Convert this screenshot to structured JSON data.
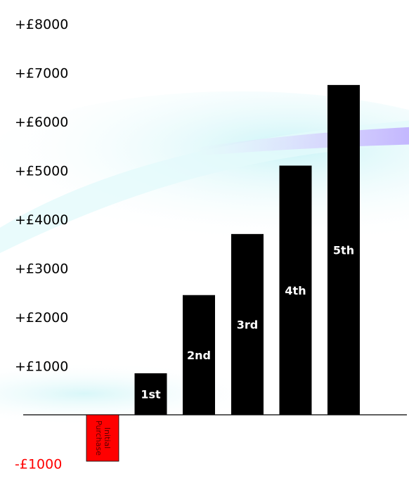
{
  "chart_data": {
    "type": "bar",
    "categories": [
      "Initial Purchase",
      "1st",
      "2nd",
      "3rd",
      "4th",
      "5th"
    ],
    "values": [
      -950,
      850,
      2450,
      3700,
      5100,
      6750
    ],
    "yticks": [
      "+£8000",
      "+£7000",
      "+£6000",
      "+£5000",
      "+£4000",
      "+£3000",
      "+£2000",
      "+£1000",
      "-£1000"
    ],
    "ytick_values": [
      8000,
      7000,
      6000,
      5000,
      4000,
      3000,
      2000,
      1000,
      -1000
    ],
    "ylim": [
      -1000,
      8000
    ],
    "grid": false,
    "title": "",
    "xlabel": "",
    "ylabel": ""
  },
  "colors": {
    "positive_bar": "#000000",
    "negative_bar": "#ff0000",
    "positive_label": "#ffffff",
    "negative_label": "#5a0000",
    "tick_positive": "#000000",
    "tick_negative": "#ff0000",
    "axis": "#000000"
  }
}
